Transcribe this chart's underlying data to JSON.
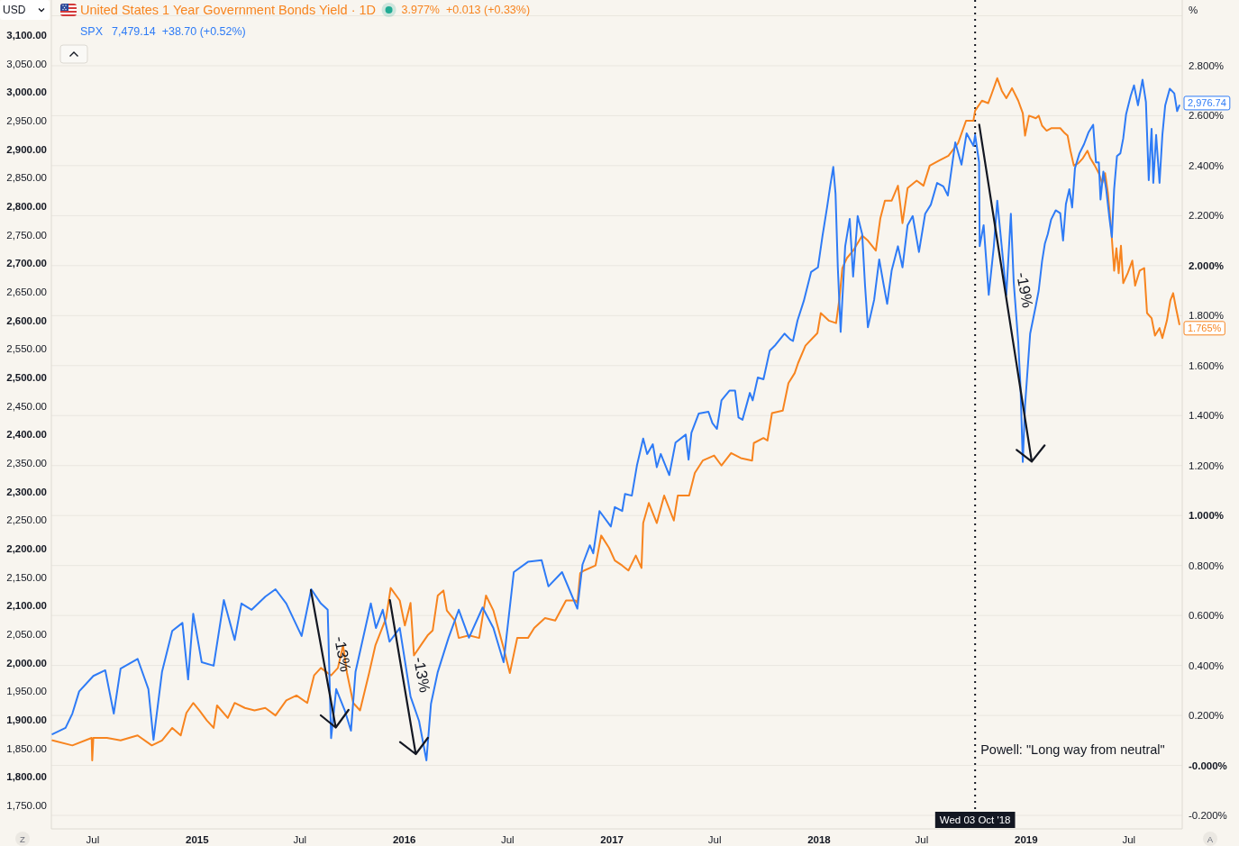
{
  "chart_data": {
    "type": "line",
    "ylabel": "USD",
    "y2label": "%",
    "xlim": [
      "2014-04-19",
      "2019-10-03"
    ],
    "xticks": [
      {
        "value": "2014-07-01",
        "label": "Jul"
      },
      {
        "value": "2015-01-01",
        "label": "2015"
      },
      {
        "value": "2015-07-01",
        "label": "Jul"
      },
      {
        "value": "2016-01-01",
        "label": "2016"
      },
      {
        "value": "2016-07-01",
        "label": "Jul"
      },
      {
        "value": "2017-01-01",
        "label": "2017"
      },
      {
        "value": "2017-07-01",
        "label": "Jul"
      },
      {
        "value": "2018-01-01",
        "label": "2018"
      },
      {
        "value": "2018-07-01",
        "label": "Jul"
      },
      {
        "value": "2019-01-01",
        "label": "2019"
      },
      {
        "value": "2019-07-01",
        "label": "Jul"
      }
    ],
    "ylim": [
      1709,
      3161.6
    ],
    "yticks": [
      {
        "value": 1750,
        "label": "1,750.00"
      },
      {
        "value": 1800,
        "label": "1,800.00"
      },
      {
        "value": 1850,
        "label": "1,850.00"
      },
      {
        "value": 1900,
        "label": "1,900.00"
      },
      {
        "value": 1950,
        "label": "1,950.00"
      },
      {
        "value": 2000,
        "label": "2,000.00"
      },
      {
        "value": 2050,
        "label": "2,050.00"
      },
      {
        "value": 2100,
        "label": "2,100.00"
      },
      {
        "value": 2150,
        "label": "2,150.00"
      },
      {
        "value": 2200,
        "label": "2,200.00"
      },
      {
        "value": 2250,
        "label": "2,250.00"
      },
      {
        "value": 2300,
        "label": "2,300.00"
      },
      {
        "value": 2350,
        "label": "2,350.00"
      },
      {
        "value": 2400,
        "label": "2,400.00"
      },
      {
        "value": 2450,
        "label": "2,450.00"
      },
      {
        "value": 2500,
        "label": "2,500.00"
      },
      {
        "value": 2550,
        "label": "2,550.00"
      },
      {
        "value": 2600,
        "label": "2,600.00"
      },
      {
        "value": 2650,
        "label": "2,650.00"
      },
      {
        "value": 2700,
        "label": "2,700.00"
      },
      {
        "value": 2750,
        "label": "2,750.00"
      },
      {
        "value": 2800,
        "label": "2,800.00"
      },
      {
        "value": 2850,
        "label": "2,850.00"
      },
      {
        "value": 2900,
        "label": "2,900.00"
      },
      {
        "value": 2950,
        "label": "2,950.00"
      },
      {
        "value": 3000,
        "label": "3,000.00"
      },
      {
        "value": 3050,
        "label": "3,050.00"
      },
      {
        "value": 3100,
        "label": "3,100.00"
      }
    ],
    "y2lim": [
      -0.254,
      3.063
    ],
    "y2ticks": [
      {
        "value": -0.2,
        "label": "-0.200%"
      },
      {
        "value": 0,
        "label": "-0.000%"
      },
      {
        "value": 0.2,
        "label": "0.200%"
      },
      {
        "value": 0.4,
        "label": "0.400%"
      },
      {
        "value": 0.6,
        "label": "0.600%"
      },
      {
        "value": 0.8,
        "label": "0.800%"
      },
      {
        "value": 1,
        "label": "1.000%"
      },
      {
        "value": 1.2,
        "label": "1.200%"
      },
      {
        "value": 1.4,
        "label": "1.400%"
      },
      {
        "value": 1.6,
        "label": "1.600%"
      },
      {
        "value": 1.8,
        "label": "1.800%"
      },
      {
        "value": 2,
        "label": "2.000%"
      },
      {
        "value": 2.2,
        "label": "2.200%"
      },
      {
        "value": 2.4,
        "label": "2.400%"
      },
      {
        "value": 2.6,
        "label": "2.600%"
      },
      {
        "value": 2.8,
        "label": "2.800%"
      },
      {
        "value": 3,
        "label": null
      }
    ],
    "grid": "y2",
    "legend": "top left",
    "series": [
      {
        "name": "United States 1 Year Government Bonds Yield · 1D",
        "color": "#f7841f",
        "axis": "y2",
        "x": [
          "2014-04-21",
          "2014-05-26",
          "2014-06-29",
          "2014-06-30",
          "2014-07-02",
          "2014-07-26",
          "2014-08-19",
          "2014-09-18",
          "2014-10-13",
          "2014-10-31",
          "2014-11-18",
          "2014-12-03",
          "2014-12-13",
          "2014-12-25",
          "2015-01-05",
          "2015-01-18",
          "2015-01-30",
          "2015-02-05",
          "2015-02-24",
          "2015-03-08",
          "2015-03-26",
          "2015-04-12",
          "2015-05-01",
          "2015-05-19",
          "2015-06-07",
          "2015-06-25",
          "2015-07-14",
          "2015-07-26",
          "2015-08-07",
          "2015-08-25",
          "2015-09-06",
          "2015-09-15",
          "2015-09-22",
          "2015-10-03",
          "2015-10-15",
          "2015-10-31",
          "2015-11-11",
          "2015-11-30",
          "2015-12-08",
          "2015-12-24",
          "2016-01-02",
          "2016-01-12",
          "2016-01-18",
          "2016-01-30",
          "2016-02-11",
          "2016-02-20",
          "2016-02-29",
          "2016-03-10",
          "2016-03-16",
          "2016-03-30",
          "2016-04-06",
          "2016-04-24",
          "2016-05-12",
          "2016-05-24",
          "2016-06-06",
          "2016-06-24",
          "2016-07-05",
          "2016-07-18",
          "2016-08-06",
          "2016-08-17",
          "2016-09-05",
          "2016-09-23",
          "2016-10-12",
          "2016-10-29",
          "2016-11-01",
          "2016-11-06",
          "2016-11-13",
          "2016-12-03",
          "2016-12-13",
          "2016-12-27",
          "2017-01-06",
          "2017-01-19",
          "2017-01-30",
          "2017-02-12",
          "2017-02-22",
          "2017-02-25",
          "2017-03-07",
          "2017-03-21",
          "2017-04-03",
          "2017-04-20",
          "2017-04-27",
          "2017-05-17",
          "2017-05-27",
          "2017-06-10",
          "2017-06-30",
          "2017-07-13",
          "2017-07-30",
          "2017-08-16",
          "2017-09-05",
          "2017-09-08",
          "2017-09-25",
          "2017-10-02",
          "2017-10-10",
          "2017-10-29",
          "2017-11-08",
          "2017-11-19",
          "2017-11-25",
          "2017-12-08",
          "2017-12-29",
          "2018-01-04",
          "2018-01-18",
          "2018-01-31",
          "2018-02-06",
          "2018-02-11",
          "2018-02-19",
          "2018-03-02",
          "2018-03-18",
          "2018-03-28",
          "2018-04-11",
          "2018-04-19",
          "2018-04-27",
          "2018-05-09",
          "2018-05-20",
          "2018-05-28",
          "2018-06-06",
          "2018-06-22",
          "2018-07-04",
          "2018-07-15",
          "2018-07-31",
          "2018-08-17",
          "2018-09-03",
          "2018-09-17",
          "2018-09-30",
          "2018-10-03",
          "2018-10-15",
          "2018-10-26",
          "2018-10-31",
          "2018-11-11",
          "2018-11-19",
          "2018-11-27",
          "2018-12-07",
          "2018-12-18",
          "2018-12-26",
          "2018-12-30",
          "2019-01-06",
          "2019-01-18",
          "2019-01-23",
          "2019-01-29",
          "2019-02-06",
          "2019-02-14",
          "2019-02-22",
          "2019-03-02",
          "2019-03-10",
          "2019-03-15",
          "2019-03-20",
          "2019-03-26",
          "2019-04-03",
          "2019-04-11",
          "2019-04-19",
          "2019-04-24",
          "2019-05-02",
          "2019-05-09",
          "2019-05-15",
          "2019-05-20",
          "2019-05-25",
          "2019-05-31",
          "2019-06-05",
          "2019-06-09",
          "2019-06-13",
          "2019-06-17",
          "2019-06-21",
          "2019-06-29",
          "2019-07-07",
          "2019-07-12",
          "2019-07-20",
          "2019-07-28",
          "2019-08-02",
          "2019-08-10",
          "2019-08-16",
          "2019-08-24",
          "2019-08-29",
          "2019-09-06",
          "2019-09-12",
          "2019-09-17",
          "2019-09-22",
          "2019-09-28"
        ],
        "values": [
          0.1,
          0.08,
          0.11,
          0.02,
          0.11,
          0.11,
          0.1,
          0.12,
          0.08,
          0.1,
          0.15,
          0.12,
          0.21,
          0.25,
          0.22,
          0.18,
          0.15,
          0.24,
          0.19,
          0.25,
          0.23,
          0.22,
          0.23,
          0.2,
          0.26,
          0.28,
          0.25,
          0.36,
          0.39,
          0.36,
          0.39,
          0.48,
          0.37,
          0.25,
          0.22,
          0.37,
          0.48,
          0.59,
          0.71,
          0.66,
          0.56,
          0.65,
          0.44,
          0.48,
          0.52,
          0.54,
          0.68,
          0.7,
          0.62,
          0.58,
          0.51,
          0.52,
          0.51,
          0.68,
          0.62,
          0.47,
          0.37,
          0.51,
          0.51,
          0.55,
          0.59,
          0.58,
          0.66,
          0.66,
          0.65,
          0.77,
          0.78,
          0.8,
          0.92,
          0.87,
          0.82,
          0.8,
          0.78,
          0.84,
          0.79,
          0.97,
          1.05,
          0.97,
          1.08,
          0.98,
          1.08,
          1.08,
          1.17,
          1.22,
          1.24,
          1.2,
          1.25,
          1.23,
          1.22,
          1.29,
          1.31,
          1.3,
          1.41,
          1.42,
          1.53,
          1.57,
          1.61,
          1.68,
          1.73,
          1.81,
          1.78,
          1.77,
          1.87,
          1.99,
          2.03,
          2.06,
          2.12,
          2.1,
          2.06,
          2.19,
          2.26,
          2.26,
          2.32,
          2.17,
          2.31,
          2.34,
          2.32,
          2.4,
          2.42,
          2.44,
          2.49,
          2.58,
          2.58,
          2.62,
          2.66,
          2.65,
          2.68,
          2.75,
          2.7,
          2.67,
          2.71,
          2.66,
          2.61,
          2.52,
          2.6,
          2.59,
          2.6,
          2.56,
          2.54,
          2.55,
          2.55,
          2.55,
          2.53,
          2.52,
          2.46,
          2.4,
          2.41,
          2.43,
          2.46,
          2.43,
          2.4,
          2.37,
          2.33,
          2.37,
          2.29,
          2.14,
          1.98,
          2.07,
          1.97,
          2.08,
          1.93,
          1.97,
          2.02,
          1.92,
          1.98,
          1.99,
          1.81,
          1.79,
          1.72,
          1.75,
          1.71,
          1.78,
          1.86,
          1.89,
          1.83,
          1.765
        ],
        "value_labels": [
          null,
          null,
          null,
          null,
          null,
          null,
          null,
          null,
          null,
          null,
          null,
          null,
          null,
          null,
          null,
          null,
          null,
          null,
          null,
          null,
          null,
          null,
          null,
          null,
          null,
          null,
          null,
          null,
          null,
          null,
          null,
          null,
          null,
          null,
          null,
          null,
          null,
          null,
          null,
          null,
          null,
          null,
          null,
          null,
          null,
          null,
          null,
          null,
          null,
          null,
          null,
          null,
          null,
          null,
          null,
          null,
          null,
          null,
          null,
          null,
          null,
          null,
          null,
          null,
          null,
          null,
          null,
          null,
          null,
          null,
          null,
          null,
          null,
          null,
          null,
          null,
          null,
          null,
          null,
          null,
          null,
          null,
          null,
          null,
          null,
          null,
          null,
          null,
          null,
          null,
          null,
          null,
          null,
          null,
          null,
          null,
          null,
          null,
          null,
          null,
          null,
          null,
          null,
          null,
          null,
          null,
          null,
          null,
          null,
          null,
          null,
          null,
          null,
          null,
          null,
          null,
          null,
          null,
          null,
          null,
          null,
          null,
          null,
          null,
          null,
          null,
          null,
          null,
          null,
          null,
          null,
          null,
          null,
          null,
          null,
          null,
          null,
          null,
          null,
          null,
          null,
          null,
          null,
          null,
          null,
          null,
          null,
          null,
          null,
          null,
          null,
          null,
          null,
          null,
          null,
          null,
          null,
          null,
          null,
          null,
          null,
          null,
          null,
          null,
          null,
          null,
          null,
          null,
          null,
          null,
          null,
          null,
          null,
          null,
          null,
          "1.765%"
        ]
      },
      {
        "name": "SPX",
        "color": "#2e7bf6",
        "axis": "y",
        "x": [
          "2014-04-21",
          "2014-05-14",
          "2014-05-26",
          "2014-06-07",
          "2014-07-02",
          "2014-07-23",
          "2014-08-07",
          "2014-08-19",
          "2014-09-18",
          "2014-10-07",
          "2014-10-16",
          "2014-10-31",
          "2014-11-18",
          "2014-12-06",
          "2014-12-16",
          "2014-12-25",
          "2015-01-09",
          "2015-01-30",
          "2015-02-17",
          "2015-03-08",
          "2015-03-20",
          "2015-04-07",
          "2015-05-01",
          "2015-05-19",
          "2015-06-07",
          "2015-07-04",
          "2015-07-21",
          "2015-08-07",
          "2015-08-19",
          "2015-08-25",
          "2015-09-03",
          "2015-09-18",
          "2015-09-29",
          "2015-10-07",
          "2015-11-03",
          "2015-11-12",
          "2015-11-24",
          "2015-12-06",
          "2015-12-24",
          "2016-01-12",
          "2016-01-27",
          "2016-02-09",
          "2016-02-17",
          "2016-02-29",
          "2016-03-19",
          "2016-04-06",
          "2016-04-24",
          "2016-05-18",
          "2016-06-06",
          "2016-06-24",
          "2016-07-12",
          "2016-08-06",
          "2016-08-30",
          "2016-09-11",
          "2016-10-05",
          "2016-11-01",
          "2016-11-10",
          "2016-11-23",
          "2016-11-29",
          "2016-12-10",
          "2016-12-30",
          "2017-01-06",
          "2017-01-19",
          "2017-01-24",
          "2017-02-05",
          "2017-02-14",
          "2017-02-25",
          "2017-03-04",
          "2017-03-14",
          "2017-03-21",
          "2017-03-28",
          "2017-04-12",
          "2017-04-23",
          "2017-05-11",
          "2017-05-16",
          "2017-05-21",
          "2017-06-03",
          "2017-06-20",
          "2017-06-27",
          "2017-07-05",
          "2017-07-13",
          "2017-07-27",
          "2017-08-06",
          "2017-08-12",
          "2017-08-19",
          "2017-09-01",
          "2017-09-06",
          "2017-09-15",
          "2017-09-25",
          "2017-10-06",
          "2017-10-16",
          "2017-11-01",
          "2017-11-11",
          "2017-11-16",
          "2017-11-24",
          "2017-12-05",
          "2017-12-18",
          "2017-12-30",
          "2018-01-07",
          "2018-01-15",
          "2018-01-21",
          "2018-01-26",
          "2018-01-30",
          "2018-02-03",
          "2018-02-08",
          "2018-02-16",
          "2018-02-24",
          "2018-03-02",
          "2018-03-10",
          "2018-03-18",
          "2018-03-23",
          "2018-03-28",
          "2018-04-08",
          "2018-04-17",
          "2018-04-24",
          "2018-05-01",
          "2018-05-09",
          "2018-05-20",
          "2018-05-28",
          "2018-06-06",
          "2018-06-15",
          "2018-06-26",
          "2018-07-07",
          "2018-07-17",
          "2018-07-28",
          "2018-08-08",
          "2018-08-16",
          "2018-08-29",
          "2018-09-09",
          "2018-09-18",
          "2018-09-30",
          "2018-10-03",
          "2018-10-10",
          "2018-10-11",
          "2018-10-18",
          "2018-10-27",
          "2018-11-05",
          "2018-11-11",
          "2018-11-21",
          "2018-11-27",
          "2018-12-05",
          "2018-12-10",
          "2018-12-18",
          "2018-12-22",
          "2018-12-26",
          "2018-12-30",
          "2019-01-08",
          "2019-01-18",
          "2019-01-23",
          "2019-01-29",
          "2019-02-03",
          "2019-02-08",
          "2019-02-14",
          "2019-02-22",
          "2019-03-02",
          "2019-03-07",
          "2019-03-12",
          "2019-03-18",
          "2019-03-23",
          "2019-03-28",
          "2019-04-05",
          "2019-04-13",
          "2019-04-21",
          "2019-04-29",
          "2019-05-04",
          "2019-05-09",
          "2019-05-12",
          "2019-05-17",
          "2019-05-22",
          "2019-05-28",
          "2019-06-01",
          "2019-06-05",
          "2019-06-10",
          "2019-06-16",
          "2019-06-21",
          "2019-06-26",
          "2019-07-04",
          "2019-07-10",
          "2019-07-17",
          "2019-07-25",
          "2019-07-31",
          "2019-08-05",
          "2019-08-10",
          "2019-08-13",
          "2019-08-18",
          "2019-08-24",
          "2019-08-29",
          "2019-09-03",
          "2019-09-11",
          "2019-09-19",
          "2019-09-24",
          "2019-09-28"
        ],
        "values": [
          1875,
          1886,
          1911,
          1950,
          1977,
          1987,
          1911,
          1990,
          2007,
          1954,
          1865,
          1984,
          2056,
          2070,
          1971,
          2086,
          2001,
          1995,
          2110,
          2040,
          2104,
          2093,
          2116,
          2129,
          2104,
          2047,
          2129,
          2104,
          2093,
          1868,
          1954,
          1917,
          1881,
          1984,
          2104,
          2061,
          2093,
          2037,
          2061,
          1941,
          1898,
          1829,
          1928,
          1984,
          2044,
          2093,
          2044,
          2097,
          2061,
          2001,
          2159,
          2177,
          2180,
          2134,
          2159,
          2095,
          2172,
          2206,
          2192,
          2266,
          2239,
          2273,
          2266,
          2296,
          2293,
          2346,
          2393,
          2366,
          2383,
          2343,
          2366,
          2329,
          2386,
          2400,
          2356,
          2403,
          2437,
          2440,
          2420,
          2410,
          2460,
          2477,
          2477,
          2430,
          2426,
          2473,
          2460,
          2500,
          2497,
          2547,
          2557,
          2577,
          2567,
          2564,
          2600,
          2634,
          2685,
          2693,
          2748,
          2798,
          2838,
          2869,
          2822,
          2693,
          2580,
          2730,
          2778,
          2677,
          2783,
          2751,
          2661,
          2588,
          2636,
          2707,
          2667,
          2629,
          2688,
          2730,
          2693,
          2767,
          2783,
          2720,
          2787,
          2803,
          2841,
          2835,
          2819,
          2912,
          2873,
          2928,
          2906,
          2925,
          2877,
          2730,
          2767,
          2645,
          2730,
          2810,
          2708,
          2645,
          2787,
          2667,
          2562,
          2483,
          2352,
          2451,
          2577,
          2626,
          2652,
          2704,
          2735,
          2751,
          2777,
          2793,
          2788,
          2740,
          2804,
          2830,
          2798,
          2867,
          2893,
          2909,
          2930,
          2943,
          2877,
          2877,
          2812,
          2861,
          2830,
          2777,
          2746,
          2830,
          2888,
          2893,
          2919,
          2961,
          2993,
          3012,
          2977,
          3022,
          2983,
          2846,
          2936,
          2841,
          2925,
          2841,
          2925,
          2977,
          3006,
          2998,
          2967,
          2976.74
        ],
        "value_labels": [
          null,
          null,
          null,
          null,
          null,
          null,
          null,
          null,
          null,
          null,
          null,
          null,
          null,
          null,
          null,
          null,
          null,
          null,
          null,
          null,
          null,
          null,
          null,
          null,
          null,
          null,
          null,
          null,
          null,
          null,
          null,
          null,
          null,
          null,
          null,
          null,
          null,
          null,
          null,
          null,
          null,
          null,
          null,
          null,
          null,
          null,
          null,
          null,
          null,
          null,
          null,
          null,
          null,
          null,
          null,
          null,
          null,
          null,
          null,
          null,
          null,
          null,
          null,
          null,
          null,
          null,
          null,
          null,
          null,
          null,
          null,
          null,
          null,
          null,
          null,
          null,
          null,
          null,
          null,
          null,
          null,
          null,
          null,
          null,
          null,
          null,
          null,
          null,
          null,
          null,
          null,
          null,
          null,
          null,
          null,
          null,
          null,
          null,
          null,
          null,
          null,
          null,
          null,
          null,
          null,
          null,
          null,
          null,
          null,
          null,
          null,
          null,
          null,
          null,
          null,
          null,
          null,
          null,
          null,
          null,
          null,
          null,
          null,
          null,
          null,
          null,
          null,
          null,
          null,
          null,
          null,
          null,
          null,
          null,
          null,
          null,
          null,
          null,
          null,
          null,
          null,
          null,
          null,
          null,
          null,
          null,
          null,
          null,
          null,
          null,
          null,
          null,
          null,
          null,
          null,
          null,
          null,
          null,
          null,
          null,
          null,
          null,
          null,
          null,
          null,
          null,
          null,
          null,
          null,
          null,
          null,
          null,
          null,
          null,
          null,
          null,
          null,
          null,
          null,
          null,
          null,
          null,
          null,
          null,
          null,
          null,
          null,
          null,
          null,
          null,
          null,
          "2,976.74"
        ]
      }
    ],
    "ref_lines": [
      {
        "axis": "x",
        "value": "2018-10-03",
        "label": "Powell: \"Long way from neutral\"",
        "color": "#131722",
        "line_style": "dotted"
      }
    ],
    "annotations": [
      "3.977%",
      "+0.013 (+0.33%)",
      "7,479.14",
      "+38.70 (+0.52%)",
      "-13%",
      "-13%",
      "-19%",
      {
        "text": "Wed 03 Oct '18",
        "x": "2018-10-03"
      },
      "Z",
      "A"
    ]
  }
}
